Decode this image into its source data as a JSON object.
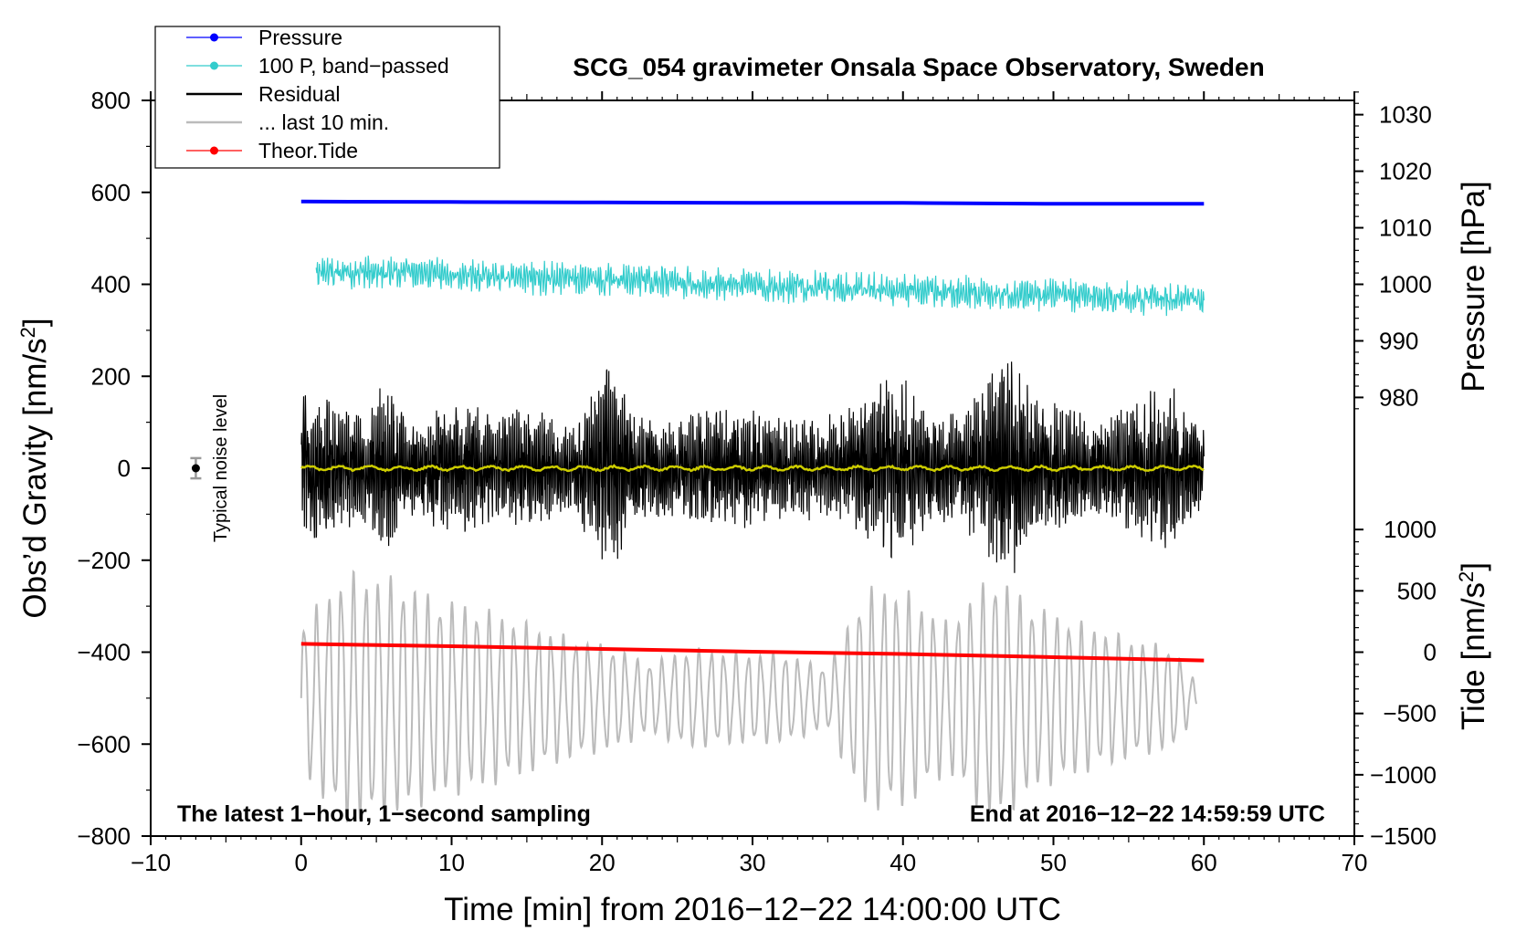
{
  "chart_data": {
    "type": "line",
    "title": "SCG_054 gravimeter Onsala Space Observatory, Sweden",
    "xlabel": "Time [min] from 2016−12−22 14:00:00 UTC",
    "ylabel_left": "Obs’d Gravity [nm/s",
    "ylabel_left_sup": "2",
    "ylabel_left_end": "]",
    "ylabel_right_pressure": "Pressure [hPa]",
    "ylabel_right_tide": "Tide [nm/s",
    "ylabel_right_tide_sup": "2",
    "ylabel_right_tide_end": "]",
    "xlim": [
      -10,
      70
    ],
    "ylim": [
      -800,
      800
    ],
    "x_ticks": [
      "−10",
      "0",
      "10",
      "20",
      "30",
      "40",
      "50",
      "60",
      "70"
    ],
    "x_tick_values": [
      -10,
      0,
      10,
      20,
      30,
      40,
      50,
      60,
      70
    ],
    "y_ticks": [
      "−800",
      "−600",
      "−400",
      "−200",
      "0",
      "200",
      "400",
      "600",
      "800"
    ],
    "y_tick_values": [
      -800,
      -600,
      -400,
      -200,
      0,
      200,
      400,
      600,
      800
    ],
    "pressure_axis": {
      "ticks": [
        "980",
        "990",
        "1000",
        "1010",
        "1020",
        "1030"
      ],
      "values": [
        980,
        990,
        1000,
        1010,
        1020,
        1030
      ],
      "gravity_at_1000": 400,
      "gravity_per_hpa": 12.3
    },
    "tide_axis": {
      "ticks": [
        "−1500",
        "−1000",
        "−500",
        "0",
        "500",
        "1000"
      ],
      "values": [
        -1500,
        -1000,
        -500,
        0,
        500,
        1000
      ],
      "gravity_at_0": -400,
      "gravity_per_unit": 0.2667
    },
    "annotation_left": "The latest 1−hour, 1−second sampling",
    "annotation_right": "End at 2016−12−22 14:59:59 UTC",
    "noise_label": "Typical noise level",
    "noise_marker": {
      "x": -7,
      "y": 0,
      "err": 22
    },
    "legend": [
      {
        "label": "Pressure",
        "color": "#0000ff",
        "marker": true
      },
      {
        "label": "100 P, band−passed",
        "color": "#33cccc",
        "marker": true
      },
      {
        "label": "Residual",
        "color": "#000000",
        "marker": false
      },
      {
        "label": "... last 10 min.",
        "color": "#bbbbbb",
        "marker": false
      },
      {
        "label": "Theor.Tide",
        "color": "#ff0000",
        "marker": true
      }
    ],
    "series": [
      {
        "name": "Pressure",
        "color": "#0000ff",
        "x": [
          0,
          10,
          20,
          30,
          40,
          50,
          60
        ],
        "values": [
          580,
          579,
          578,
          577,
          577,
          575,
          575
        ]
      },
      {
        "name": "100 P, band−passed",
        "color": "#33cccc",
        "x_start": 1,
        "x_end": 60,
        "center_start": 430,
        "center_end": 365,
        "amplitude": 30
      },
      {
        "name": "Residual",
        "color": "#000000",
        "x_start": 0,
        "x_end": 60,
        "center": 0,
        "envelope_x": [
          0,
          2,
          4,
          5.5,
          7,
          9,
          11,
          13,
          15,
          18,
          20.5,
          22,
          24,
          27,
          29,
          31,
          33,
          35,
          37,
          39.5,
          42,
          44,
          46.7,
          49,
          51,
          54,
          57.5,
          60
        ],
        "envelope_amp": [
          180,
          150,
          120,
          200,
          110,
          140,
          150,
          110,
          140,
          100,
          250,
          120,
          110,
          130,
          140,
          120,
          110,
          120,
          140,
          220,
          120,
          130,
          260,
          160,
          130,
          120,
          200,
          90
        ]
      },
      {
        "name": "Smoothed residual",
        "color": "#cccc00",
        "x_start": 0,
        "x_end": 60,
        "values_approx": 0
      },
      {
        "name": "... last 10 min.",
        "color": "#bbbbbb",
        "x_start": 0,
        "x_end": 59.5,
        "center": -500,
        "envelope_x": [
          0,
          3,
          6,
          9,
          12,
          15,
          18,
          21,
          23,
          26,
          29,
          32,
          35,
          37.5,
          40,
          43,
          46,
          49,
          52,
          55,
          58,
          59.5
        ],
        "envelope_amp": [
          150,
          250,
          240,
          200,
          180,
          150,
          120,
          100,
          70,
          100,
          90,
          90,
          60,
          220,
          220,
          150,
          250,
          180,
          150,
          120,
          100,
          30
        ]
      },
      {
        "name": "Theor.Tide",
        "color": "#ff0000",
        "x": [
          0,
          10,
          20,
          30,
          40,
          50,
          60
        ],
        "values": [
          -382,
          -387,
          -393,
          -399,
          -404,
          -411,
          -418
        ]
      }
    ]
  }
}
